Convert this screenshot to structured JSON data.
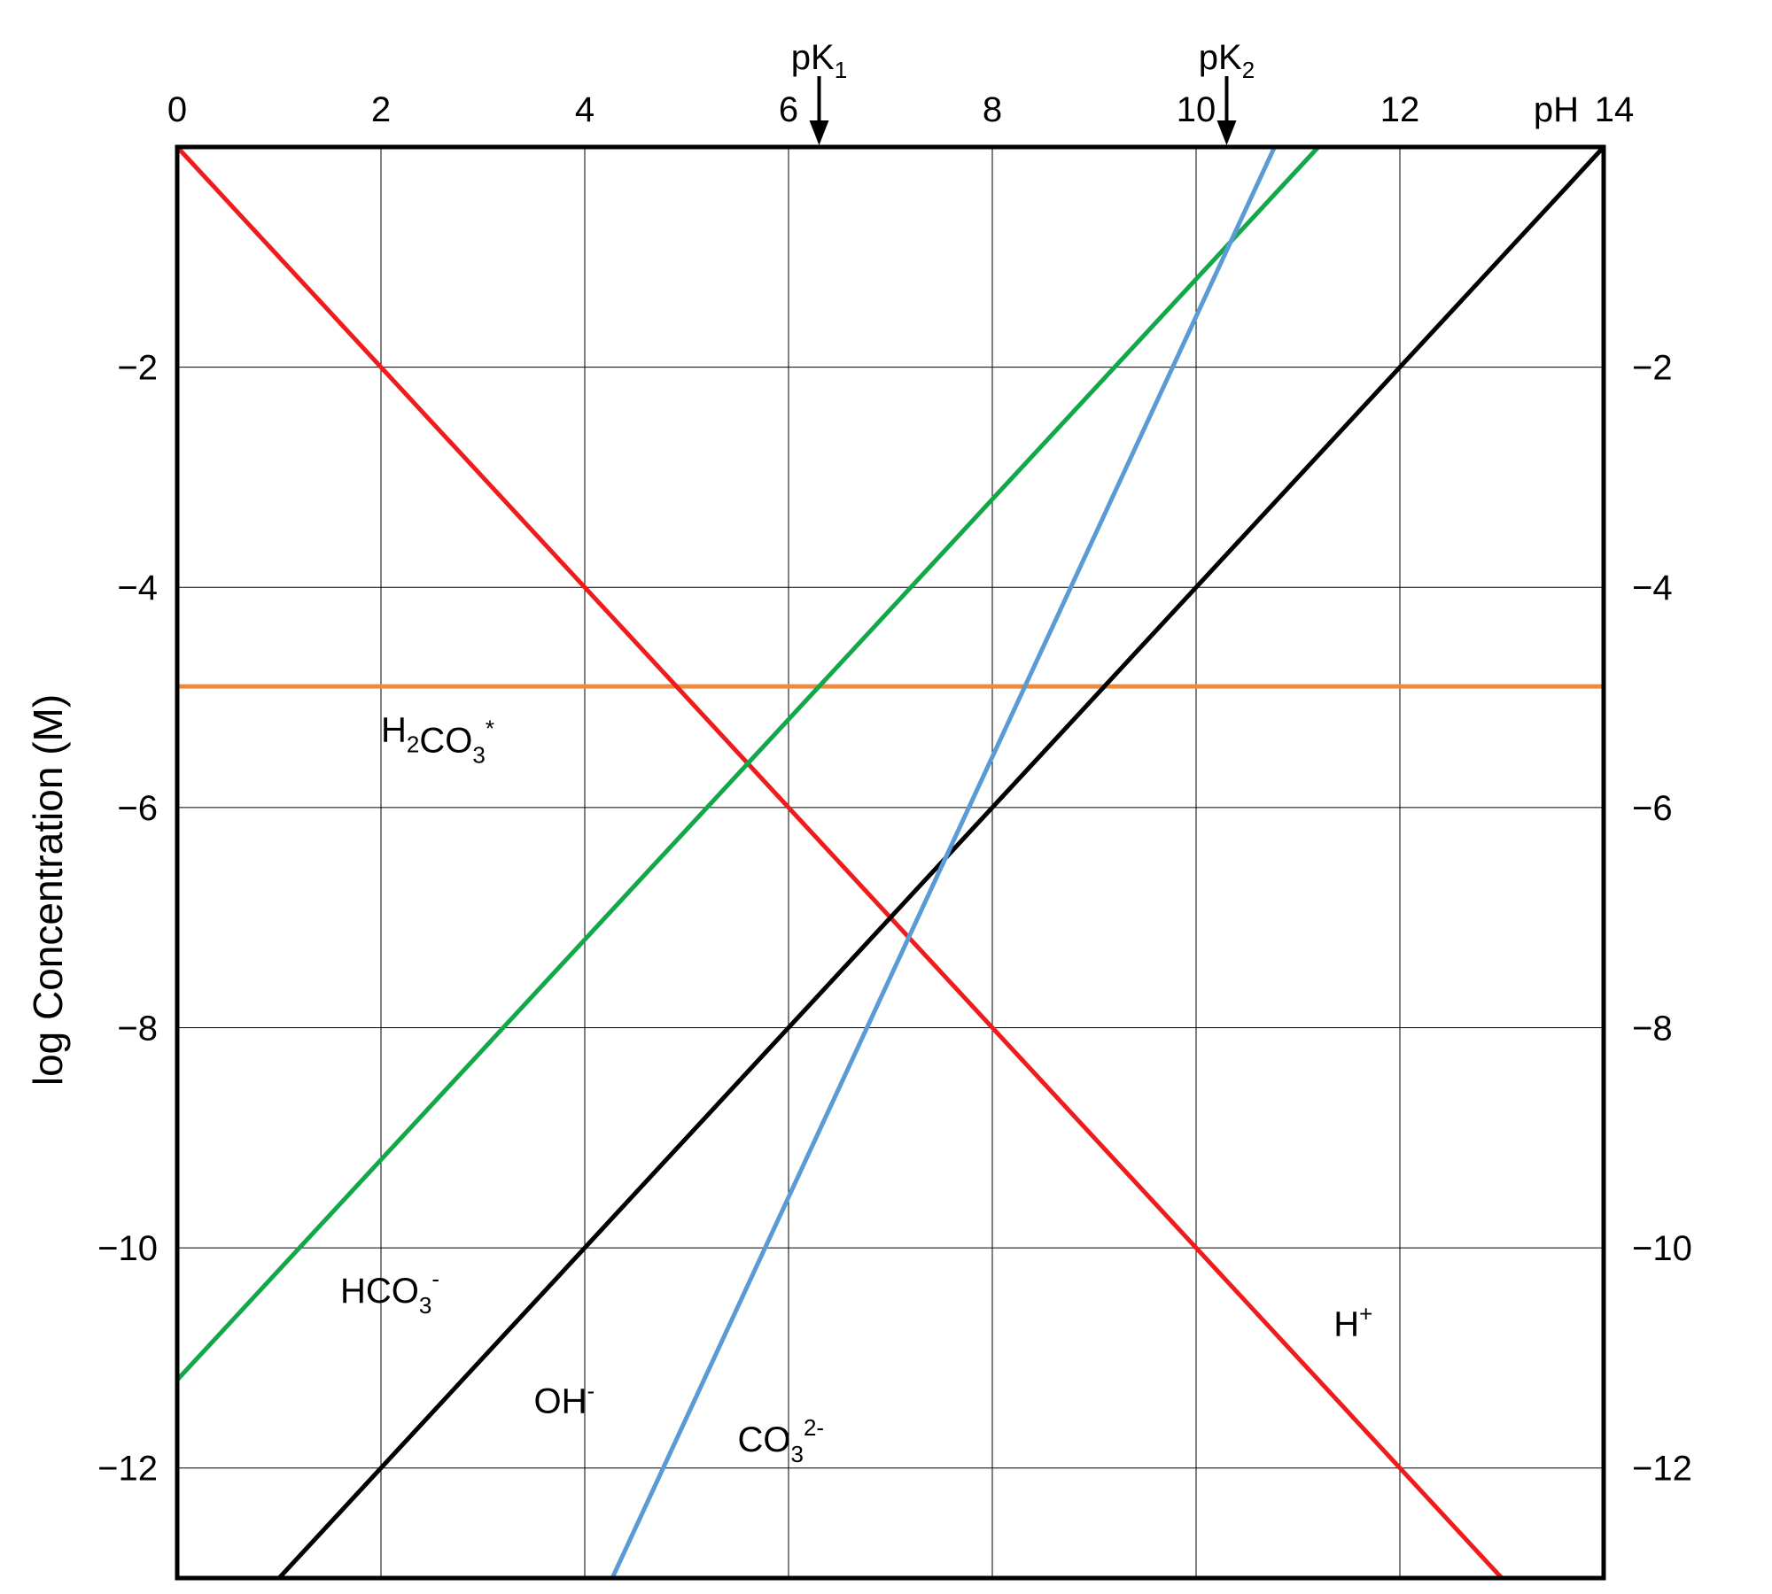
{
  "chart_data": {
    "type": "line",
    "ylabel": "log Concentration (M)",
    "x_axis_label": "pH",
    "xlim": [
      0,
      14
    ],
    "ylim": [
      -13,
      0
    ],
    "x_ticks": [
      "0",
      "2",
      "4",
      "6",
      "8",
      "10",
      "12",
      "14"
    ],
    "y_ticks": [
      "−2",
      "−4",
      "−6",
      "−8",
      "−10",
      "−12"
    ],
    "grid": true,
    "pK_markers": [
      {
        "label": "pK",
        "sub": "1",
        "x": 6.3
      },
      {
        "label": "pK",
        "sub": "2",
        "x": 10.3
      }
    ],
    "series": [
      {
        "key": "h2co3",
        "color": "#ee8a3a",
        "points": [
          [
            0,
            -4.9
          ],
          [
            14,
            -4.9
          ]
        ]
      },
      {
        "key": "h",
        "color": "#ee1c1c",
        "points": [
          [
            0,
            0
          ],
          [
            13,
            -13
          ]
        ]
      },
      {
        "key": "oh",
        "color": "#000000",
        "points": [
          [
            1,
            -13
          ],
          [
            14,
            0
          ]
        ]
      },
      {
        "key": "hco3",
        "color": "#12a84a",
        "points": [
          [
            0,
            -11.2
          ],
          [
            11.2,
            0
          ]
        ]
      },
      {
        "key": "co3",
        "color": "#5b9bd5",
        "points": [
          [
            4.27,
            -13
          ],
          [
            10.77,
            0
          ]
        ]
      }
    ],
    "species_labels": [
      {
        "key": "h2co3",
        "base": "H",
        "sub1": "2",
        "mid": "CO",
        "sub2": "3",
        "sup": "*",
        "x": 2.0,
        "y": -5.4
      },
      {
        "key": "hco3",
        "base": "HCO",
        "sub2": "3",
        "sup": "-",
        "x": 1.6,
        "y": -10.5
      },
      {
        "key": "oh",
        "base": "OH",
        "sup": "-",
        "x": 3.5,
        "y": -11.5
      },
      {
        "key": "co3",
        "base": "CO",
        "sub2": "3",
        "sup": "2-",
        "x": 5.5,
        "y": -11.85
      },
      {
        "key": "h",
        "base": "H",
        "sup": "+",
        "x": 11.35,
        "y": -10.8
      }
    ]
  }
}
